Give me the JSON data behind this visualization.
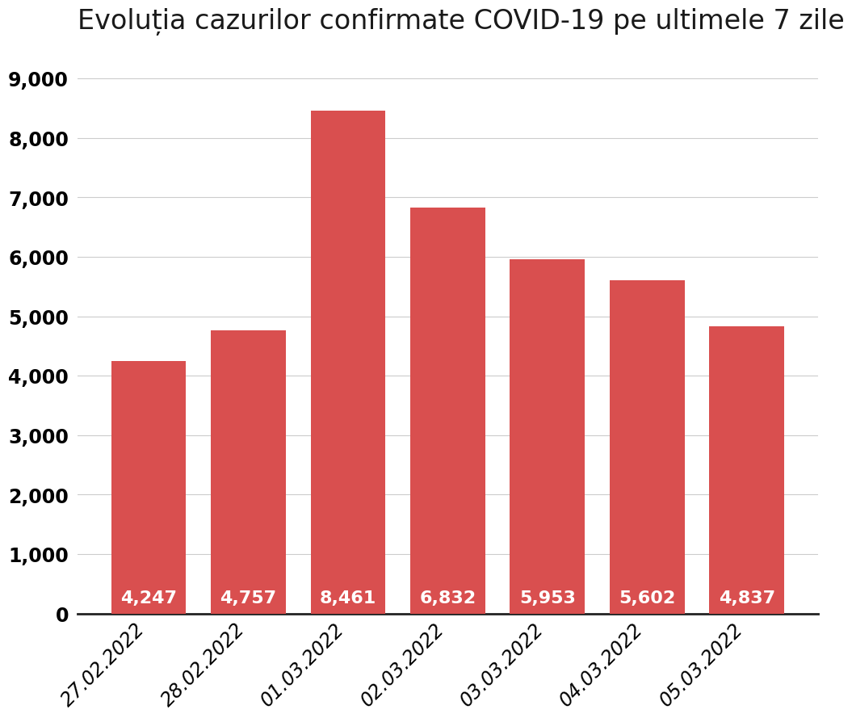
{
  "title": "Evoluția cazurilor confirmate COVID-19 pe ultimele 7 zile",
  "categories": [
    "27.02.2022",
    "28.02.2022",
    "01.03.2022",
    "02.03.2022",
    "03.03.2022",
    "04.03.2022",
    "05.03.2022"
  ],
  "values": [
    4247,
    4757,
    8461,
    6832,
    5953,
    5602,
    4837
  ],
  "bar_color": "#d94f4f",
  "label_color": "#ffffff",
  "title_color": "#1a1a1a",
  "background_color": "#ffffff",
  "ylim": [
    0,
    9500
  ],
  "yticks": [
    0,
    1000,
    2000,
    3000,
    4000,
    5000,
    6000,
    7000,
    8000,
    9000
  ],
  "title_fontsize": 24,
  "tick_fontsize": 17,
  "value_label_fontsize": 16,
  "bar_width": 0.75
}
